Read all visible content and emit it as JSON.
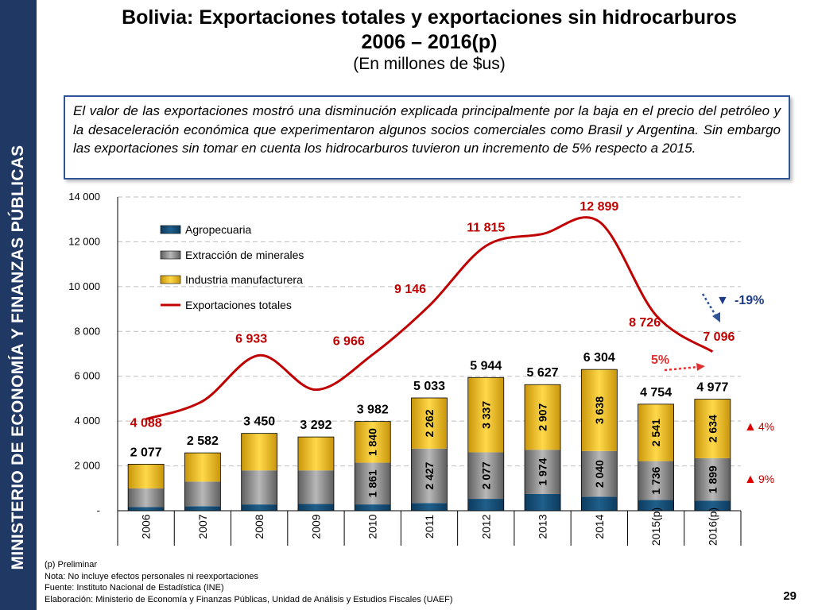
{
  "sidebar": {
    "text": "MINISTERIO DE ECONOMÍA Y FINANZAS PÚBLICAS"
  },
  "header": {
    "title_line1": "Bolivia: Exportaciones totales y exportaciones sin hidrocarburos",
    "title_line2": "2006 – 2016(p)",
    "subtitle": "(En millones de $us)"
  },
  "note": "El valor de las exportaciones mostró una disminución explicada principalmente por la baja en el precio del petróleo y la desaceleración económica que experimentaron algunos socios comerciales como Brasil y Argentina. Sin embargo las exportaciones sin tomar en cuenta los hidrocarburos tuvieron un incremento de 5% respecto a 2015.",
  "chart_data": {
    "type": "bar",
    "categories": [
      "2006",
      "2007",
      "2008",
      "2009",
      "2010",
      "2011",
      "2012",
      "2013",
      "2014",
      "2015(p)",
      "2016(p)"
    ],
    "series": [
      {
        "name": "Agropecuaria",
        "kind": "stacked-bar",
        "color": "#1f5f8b",
        "values": [
          160,
          200,
          280,
          300,
          281,
          344,
          530,
          746,
          626,
          477,
          444
        ]
      },
      {
        "name": "Extracción de minerales",
        "kind": "stacked-bar",
        "color": "#8c8c8c",
        "values": [
          837,
          1100,
          1520,
          1500,
          1861,
          2427,
          2077,
          1974,
          2040,
          1736,
          1899
        ]
      },
      {
        "name": "Industria manufacturera",
        "kind": "stacked-bar",
        "color": "#f0c020",
        "values": [
          1080,
          1282,
          1650,
          1492,
          1840,
          2262,
          3337,
          2907,
          3638,
          2541,
          2634
        ]
      },
      {
        "name": "Exportaciones totales",
        "kind": "line",
        "color": "#c00000",
        "values": [
          4088,
          4890,
          6933,
          5400,
          6966,
          9146,
          11815,
          12350,
          12899,
          8726,
          7096
        ]
      }
    ],
    "bar_totals": [
      2077,
      2582,
      3450,
      3292,
      3982,
      5033,
      5944,
      5627,
      6304,
      4754,
      4977
    ],
    "total_labels": [
      {
        "index": 0,
        "value": 4088,
        "text": "4 088"
      },
      {
        "index": 2,
        "value": 6933,
        "text": "6 933"
      },
      {
        "index": 4,
        "value": 6966,
        "text": "6 966"
      },
      {
        "index": 5,
        "value": 9146,
        "text": "9 146"
      },
      {
        "index": 6,
        "value": 11815,
        "text": "11 815"
      },
      {
        "index": 8,
        "value": 12899,
        "text": "12 899"
      },
      {
        "index": 9,
        "value": 8726,
        "text": "8 726"
      },
      {
        "index": 10,
        "value": 7096,
        "text": "7 096"
      }
    ],
    "bar_total_labels": [
      "2 077",
      "2 582",
      "3 450",
      "3 292",
      "3 982",
      "5 033",
      "5 944",
      "5 627",
      "6 304",
      "4 754",
      "4 977"
    ],
    "segment_labels": {
      "mineral": [
        "",
        "",
        "",
        "",
        "1 861",
        "2 427",
        "2 077",
        "1 974",
        "2 040",
        "1 736",
        "1 899"
      ],
      "industry": [
        "",
        "",
        "",
        "",
        "1 840",
        "2 262",
        "3 337",
        "2 907",
        "3 638",
        "2 541",
        "2 634"
      ]
    },
    "y_ticks": [
      {
        "value": 0,
        "label": "-"
      },
      {
        "value": 2000,
        "label": "2 000"
      },
      {
        "value": 4000,
        "label": "4 000"
      },
      {
        "value": 6000,
        "label": "6 000"
      },
      {
        "value": 8000,
        "label": "8 000"
      },
      {
        "value": 10000,
        "label": "10 000"
      },
      {
        "value": 12000,
        "label": "12 000"
      },
      {
        "value": 14000,
        "label": "14 000"
      }
    ],
    "ylim": [
      0,
      14000
    ],
    "gridlines": true,
    "legend_position": "top-left",
    "annotations": {
      "total_change": "-19%",
      "non_hydrocarbon_change": "5%",
      "industry_change": "4%",
      "mineral_change": "9%",
      "down_arrow": "▼",
      "up_arrow": "▲"
    }
  },
  "footer": {
    "line1": "(p) Preliminar",
    "line2": "Nota: No incluye efectos personales ni reexportaciones",
    "line3": "Fuente: Instituto Nacional de Estadística (INE)",
    "line4": "Elaboración: Ministerio de Economía y Finanzas Públicas, Unidad de Análisis y Estudios Fiscales (UAEF)"
  },
  "page_number": "29",
  "colors": {
    "sidebar": "#1f3864",
    "accent": "#c00000",
    "box_border": "#2f5597"
  }
}
